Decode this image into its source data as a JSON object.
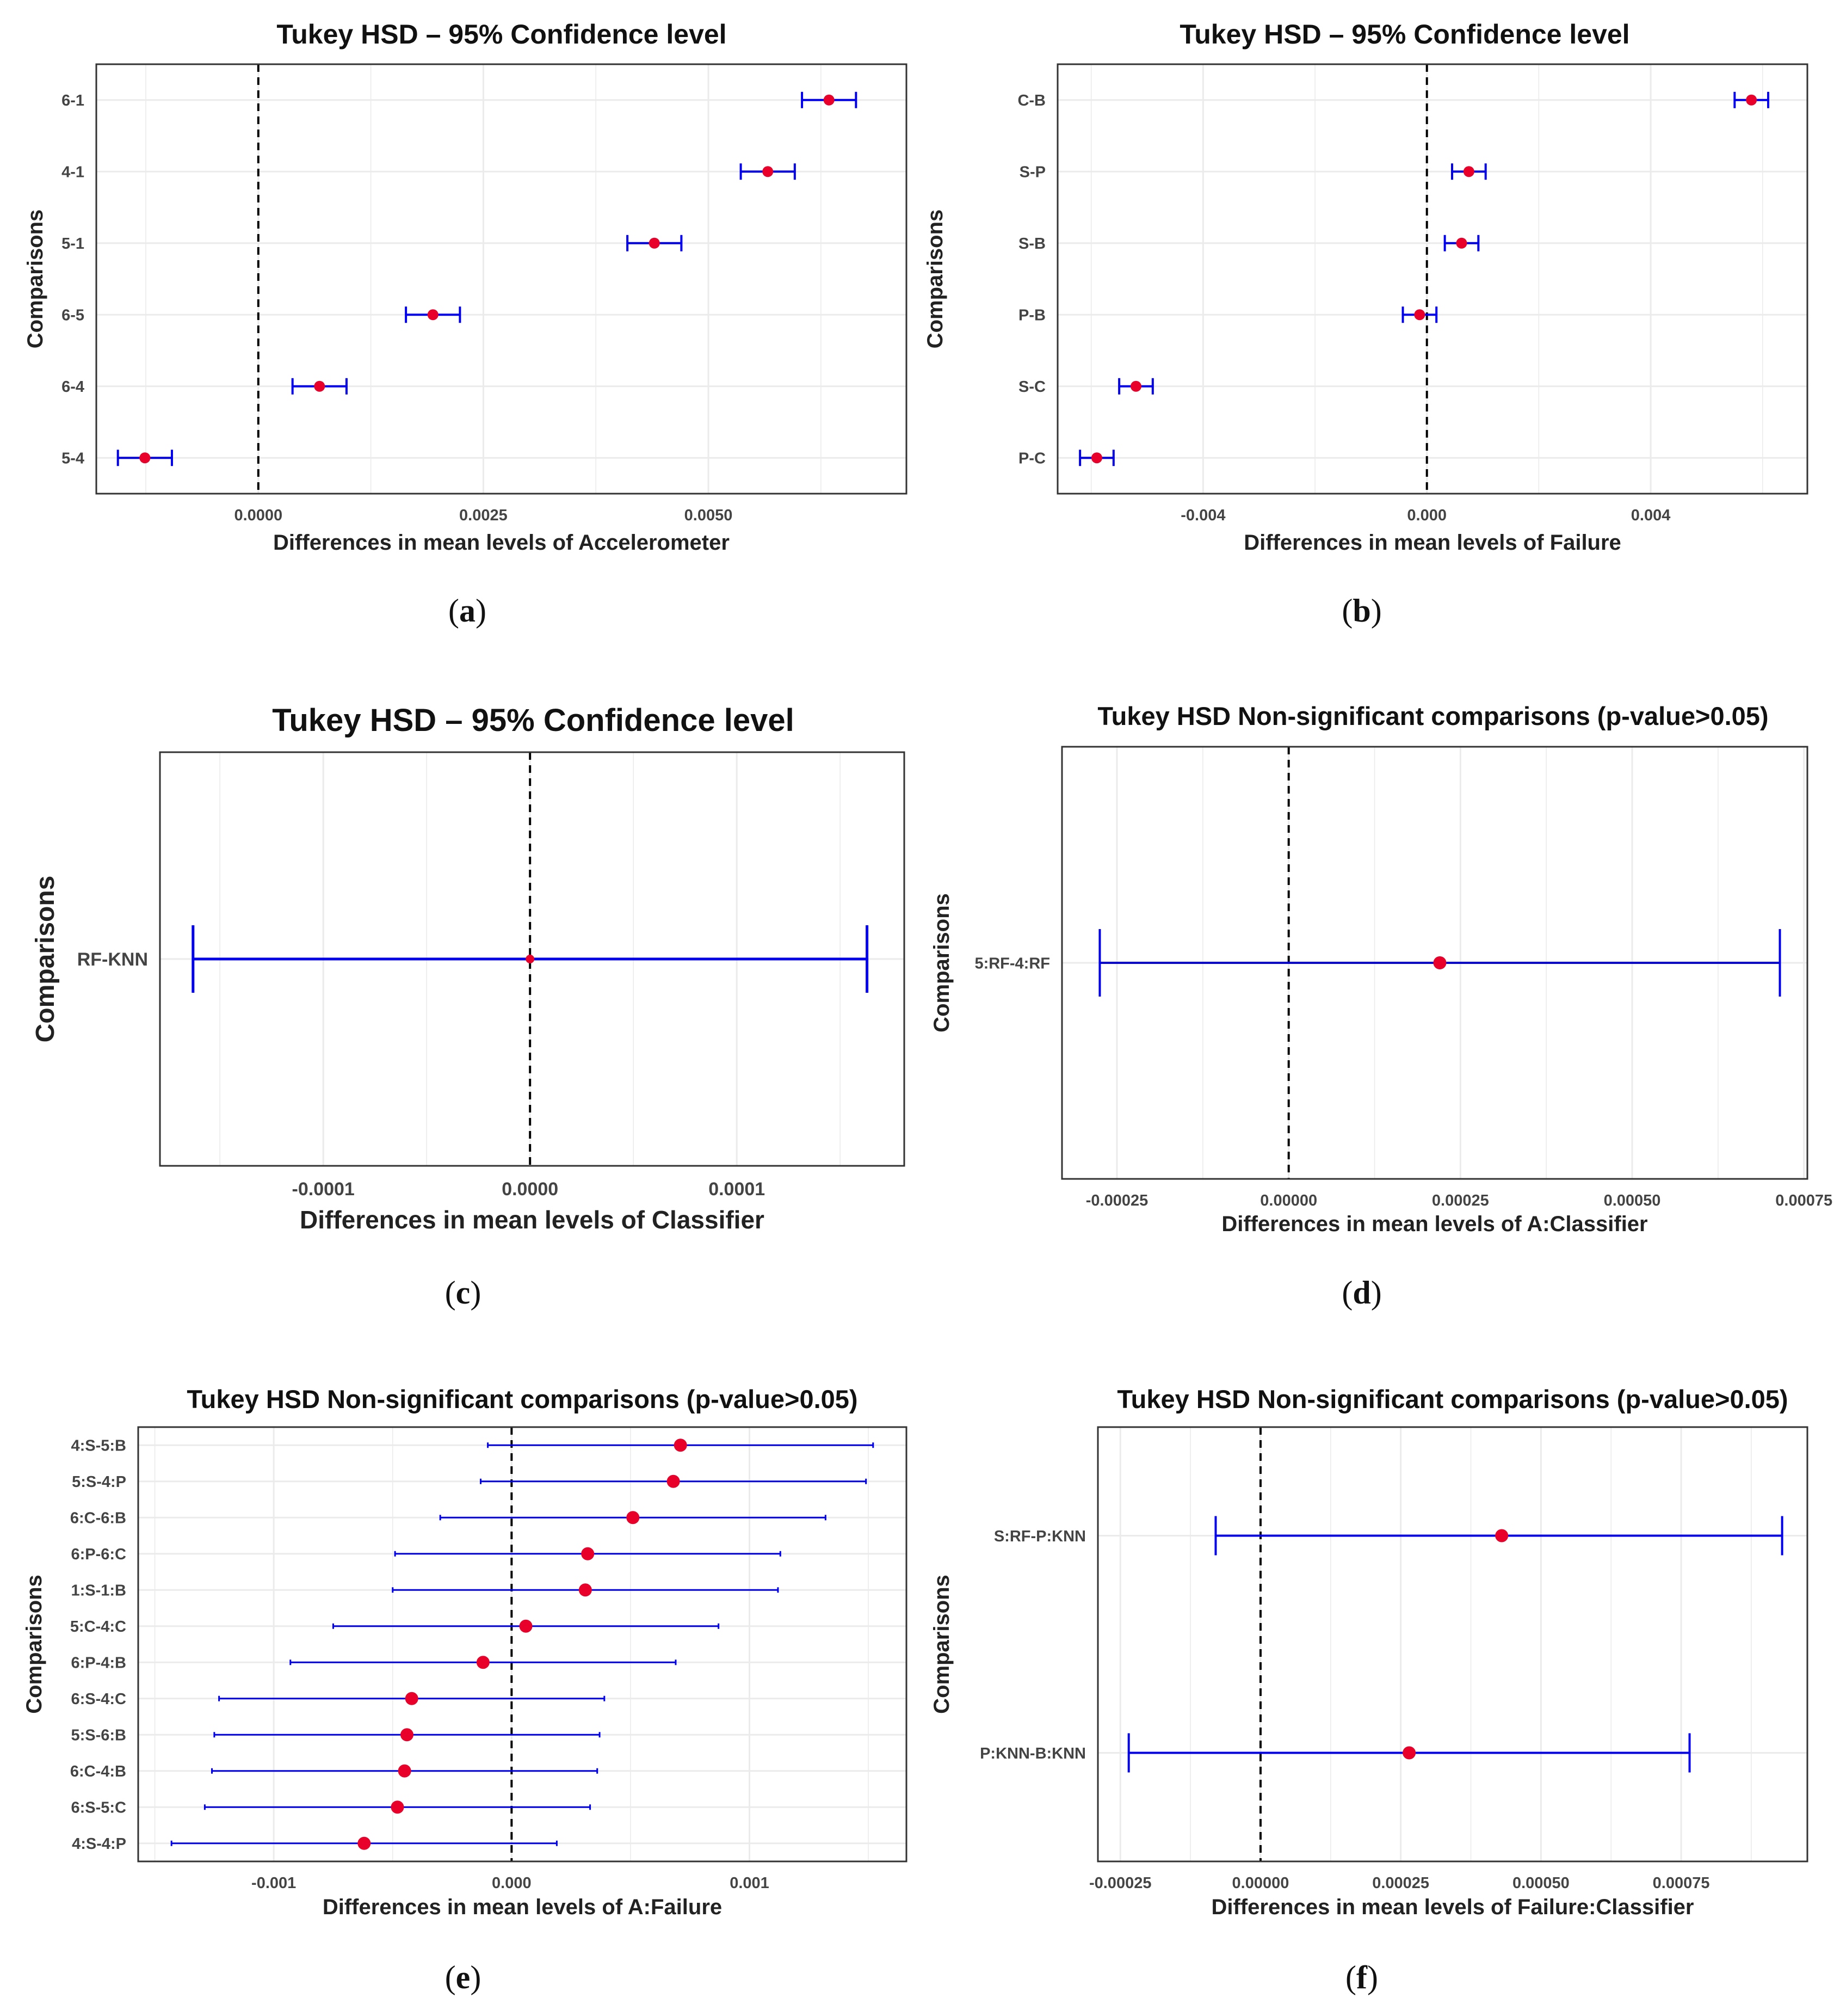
{
  "colors": {
    "errorbar": "#0000ee",
    "point": "#e8002a",
    "zero_line": "#000000",
    "grid": "#ebebeb",
    "frame": "#333333"
  },
  "chart_data": [
    {
      "id": "a",
      "type": "errorbar",
      "caption": "(a)",
      "caption_letter": "a",
      "title": "Tukey HSD – 95% Confidence level",
      "xlabel": "Differences in mean levels of Accelerometer",
      "ylabel": "Comparisons",
      "xlim": [
        -0.0018,
        0.0072
      ],
      "xticks": [
        0.0,
        0.0025,
        0.005
      ],
      "xtick_labels": [
        "0.0000",
        "0.0025",
        "0.0050"
      ],
      "comparisons": [
        {
          "label": "6-1",
          "diff": 0.00634,
          "lwr": 0.00604,
          "upr": 0.00664
        },
        {
          "label": "4-1",
          "diff": 0.00566,
          "lwr": 0.00536,
          "upr": 0.00596
        },
        {
          "label": "5-1",
          "diff": 0.0044,
          "lwr": 0.0041,
          "upr": 0.0047
        },
        {
          "label": "6-5",
          "diff": 0.00194,
          "lwr": 0.00164,
          "upr": 0.00224
        },
        {
          "label": "6-4",
          "diff": 0.00068,
          "lwr": 0.00038,
          "upr": 0.00098
        },
        {
          "label": "5-4",
          "diff": -0.00126,
          "lwr": -0.00156,
          "upr": -0.00096
        }
      ]
    },
    {
      "id": "b",
      "type": "errorbar",
      "caption": "(b)",
      "caption_letter": "b",
      "title": "Tukey HSD – 95% Confidence level",
      "xlabel": "Differences in mean levels of Failure",
      "ylabel": "Comparisons",
      "xlim": [
        -0.0066,
        0.0068
      ],
      "xticks": [
        -0.004,
        0.0,
        0.004
      ],
      "xtick_labels": [
        "-0.004",
        "0.000",
        "0.004"
      ],
      "comparisons": [
        {
          "label": "C-B",
          "diff": 0.0058,
          "lwr": 0.0055,
          "upr": 0.0061
        },
        {
          "label": "S-P",
          "diff": 0.00075,
          "lwr": 0.00045,
          "upr": 0.00105
        },
        {
          "label": "S-B",
          "diff": 0.00062,
          "lwr": 0.00032,
          "upr": 0.00092
        },
        {
          "label": "P-B",
          "diff": -0.00013,
          "lwr": -0.00043,
          "upr": 0.00017
        },
        {
          "label": "S-C",
          "diff": -0.0052,
          "lwr": -0.0055,
          "upr": -0.0049
        },
        {
          "label": "P-C",
          "diff": -0.0059,
          "lwr": -0.0062,
          "upr": -0.0056
        }
      ]
    },
    {
      "id": "c",
      "type": "errorbar",
      "caption": "(c)",
      "caption_letter": "c",
      "title": "Tukey HSD – 95% Confidence level",
      "xlabel": "Differences in mean levels of Classifier",
      "ylabel": "Comparisons",
      "xlim": [
        -0.000179,
        0.000181
      ],
      "xticks": [
        -0.0001,
        0.0,
        0.0001
      ],
      "xtick_labels": [
        "-0.0001",
        "0.0000",
        "0.0001"
      ],
      "comparisons": [
        {
          "label": "RF-KNN",
          "diff": 0.0,
          "lwr": -0.000163,
          "upr": 0.000163
        }
      ]
    },
    {
      "id": "d",
      "type": "errorbar",
      "caption": "(d)",
      "caption_letter": "d",
      "title": "Tukey HSD Non-significant comparisons (p-value>0.05)",
      "xlabel": "Differences in mean levels of A:Classifier",
      "ylabel": "Comparisons",
      "xlim": [
        -0.00033,
        0.000755
      ],
      "xticks": [
        -0.00025,
        0.0,
        0.00025,
        0.0005,
        0.00075
      ],
      "xtick_labels": [
        "-0.00025",
        "0.00000",
        "0.00025",
        "0.00050",
        "0.00075"
      ],
      "comparisons": [
        {
          "label": "5:RF-4:RF",
          "diff": 0.00022,
          "lwr": -0.000275,
          "upr": 0.000715
        }
      ]
    },
    {
      "id": "e",
      "type": "errorbar",
      "caption": "(e)",
      "caption_letter": "e",
      "title": "Tukey HSD Non-significant comparisons (p-value>0.05)",
      "xlabel": "Differences in mean levels of A:Failure",
      "ylabel": "Comparisons",
      "xlim": [
        -0.00157,
        0.00166
      ],
      "xticks": [
        -0.001,
        0.0,
        0.001
      ],
      "xtick_labels": [
        "-0.001",
        "0.000",
        "0.001"
      ],
      "comparisons": [
        {
          "label": "4:S-5:B",
          "diff": 0.00071,
          "lwr": -0.0001,
          "upr": 0.00152
        },
        {
          "label": "5:S-4:P",
          "diff": 0.00068,
          "lwr": -0.00013,
          "upr": 0.00149
        },
        {
          "label": "6:C-6:B",
          "diff": 0.00051,
          "lwr": -0.0003,
          "upr": 0.00132
        },
        {
          "label": "6:P-6:C",
          "diff": 0.00032,
          "lwr": -0.00049,
          "upr": 0.00113
        },
        {
          "label": "1:S-1:B",
          "diff": 0.00031,
          "lwr": -0.0005,
          "upr": 0.00112
        },
        {
          "label": "5:C-4:C",
          "diff": 6e-05,
          "lwr": -0.00075,
          "upr": 0.00087
        },
        {
          "label": "6:P-4:B",
          "diff": -0.00012,
          "lwr": -0.00093,
          "upr": 0.00069
        },
        {
          "label": "6:S-4:C",
          "diff": -0.00042,
          "lwr": -0.00123,
          "upr": 0.00039
        },
        {
          "label": "5:S-6:B",
          "diff": -0.00044,
          "lwr": -0.00125,
          "upr": 0.00037
        },
        {
          "label": "6:C-4:B",
          "diff": -0.00045,
          "lwr": -0.00126,
          "upr": 0.00036
        },
        {
          "label": "6:S-5:C",
          "diff": -0.00048,
          "lwr": -0.00129,
          "upr": 0.00033
        },
        {
          "label": "4:S-4:P",
          "diff": -0.00062,
          "lwr": -0.00143,
          "upr": 0.00019
        }
      ]
    },
    {
      "id": "f",
      "type": "errorbar",
      "caption": "(f)",
      "caption_letter": "f",
      "title": "Tukey HSD Non-significant comparisons (p-value>0.05)",
      "xlabel": "Differences in mean levels of Failure:Classifier",
      "ylabel": "Comparisons",
      "xlim": [
        -0.00029,
        0.000975
      ],
      "xticks": [
        -0.00025,
        0.0,
        0.00025,
        0.0005,
        0.00075
      ],
      "xtick_labels": [
        "-0.00025",
        "0.00000",
        "0.00025",
        "0.00050",
        "0.00075"
      ],
      "comparisons": [
        {
          "label": "S:RF-P:KNN",
          "diff": 0.00043,
          "lwr": -8e-05,
          "upr": 0.00093
        },
        {
          "label": "P:KNN-B:KNN",
          "diff": 0.000265,
          "lwr": -0.000235,
          "upr": 0.000765
        }
      ]
    }
  ]
}
